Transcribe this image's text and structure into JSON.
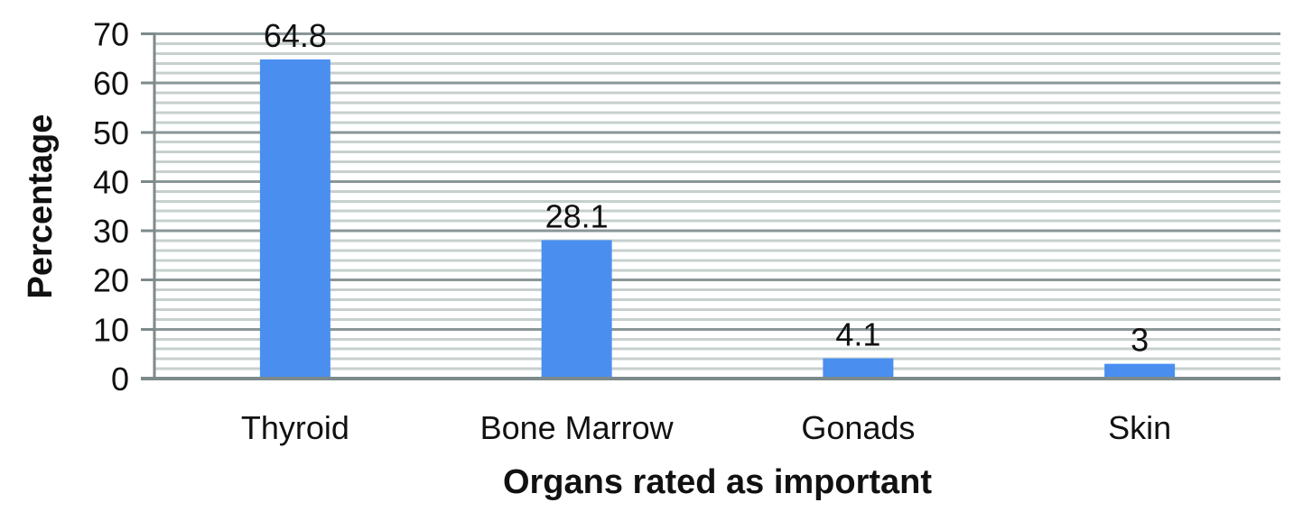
{
  "chart_data": {
    "type": "bar",
    "title": "",
    "categories": [
      "Thyroid",
      "Bone Marrow",
      "Gonads",
      "Skin"
    ],
    "values": [
      64.8,
      28.1,
      4.1,
      3
    ],
    "data_labels": [
      "64.8",
      "28.1",
      "4.1",
      "3"
    ],
    "xlabel": "Organs rated as important",
    "ylabel": "Percentage",
    "ylim": [
      0,
      70
    ],
    "y_major_ticks": [
      0,
      10,
      20,
      30,
      40,
      50,
      60,
      70
    ],
    "y_minor_unit": 2,
    "grid": "horizontal major+minor",
    "legend": "none",
    "colors": {
      "bar_fill": "#4a8ff0",
      "major_gridline": "#8a9697",
      "minor_gridline": "#c7d0cf",
      "axis_line": "#7d8a8b",
      "text": "#111111"
    }
  }
}
